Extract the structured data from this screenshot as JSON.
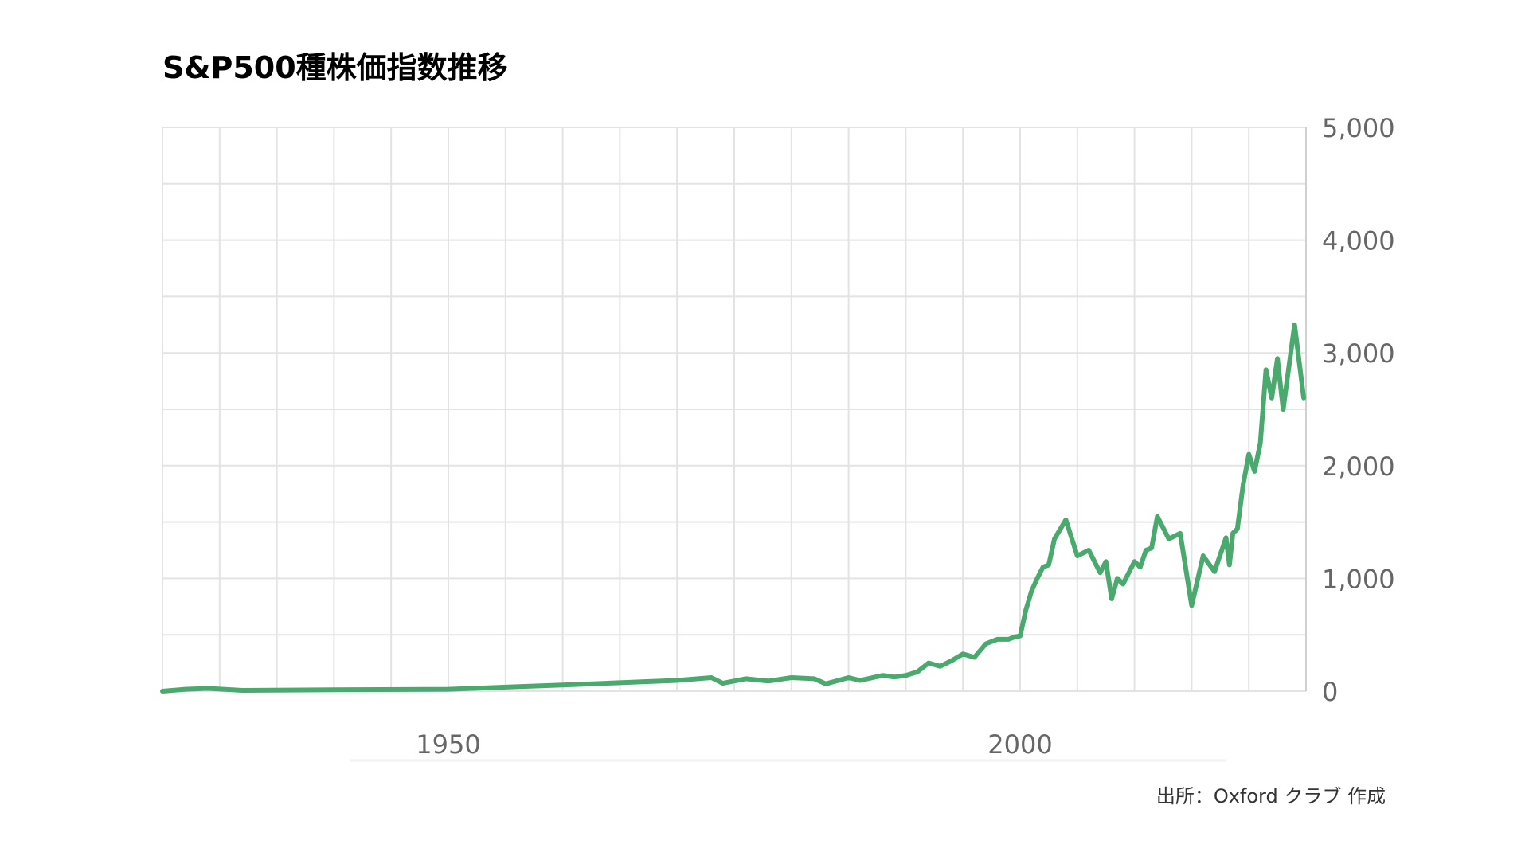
{
  "chart_data": {
    "type": "line",
    "title": "S&P500種株価指数推移",
    "source": "出所：Oxford クラブ 作成",
    "xlabel": "",
    "ylabel": "",
    "xlim": [
      1925,
      2025
    ],
    "ylim": [
      0,
      5000
    ],
    "x_ticks": [
      1950,
      2000
    ],
    "x_tick_labels": [
      "1950",
      "2000"
    ],
    "y_ticks": [
      0,
      1000,
      2000,
      3000,
      4000,
      5000
    ],
    "y_tick_labels": [
      "0",
      "1,000",
      "2,000",
      "3,000",
      "4,000",
      "5,000"
    ],
    "grid": true,
    "y_axis_position": "right",
    "series": [
      {
        "color": "#4aa96c",
        "x": [
          1925,
          1927,
          1929,
          1932,
          1940,
          1950,
          1960,
          1970,
          1973,
          1974,
          1976,
          1978,
          1980,
          1982,
          1983,
          1985,
          1986,
          1988,
          1989,
          1990,
          1991,
          1992,
          1993,
          1994,
          1995,
          1996,
          1997,
          1998,
          1998.5,
          1999,
          1999.5,
          2000,
          2000.5,
          2001,
          2001.5,
          2002,
          2002.5,
          2003,
          2004,
          2005,
          2006,
          2007,
          2007.5,
          2008,
          2008.5,
          2009,
          2010,
          2010.5,
          2011,
          2011.5,
          2012,
          2013,
          2014,
          2015,
          2016,
          2017,
          2018,
          2018.3,
          2018.6,
          2019,
          2019.5,
          2020,
          2020.5,
          2021,
          2021.5,
          2022,
          2022.5,
          2023,
          2024,
          2024.8
        ],
        "y": [
          0,
          17,
          25,
          7,
          12,
          17,
          55,
          95,
          120,
          70,
          110,
          90,
          120,
          110,
          65,
          120,
          95,
          140,
          125,
          140,
          170,
          250,
          220,
          270,
          330,
          300,
          420,
          460,
          460,
          460,
          480,
          490,
          720,
          890,
          1000,
          1100,
          1120,
          1350,
          1520,
          1200,
          1250,
          1050,
          1150,
          820,
          1000,
          950,
          1150,
          1100,
          1250,
          1270,
          1550,
          1350,
          1400,
          760,
          1200,
          1060,
          1360,
          1120,
          1400,
          1440,
          1830,
          2100,
          1950,
          2200,
          2850,
          2600,
          2950,
          2500,
          3250,
          2600
        ]
      }
    ]
  }
}
